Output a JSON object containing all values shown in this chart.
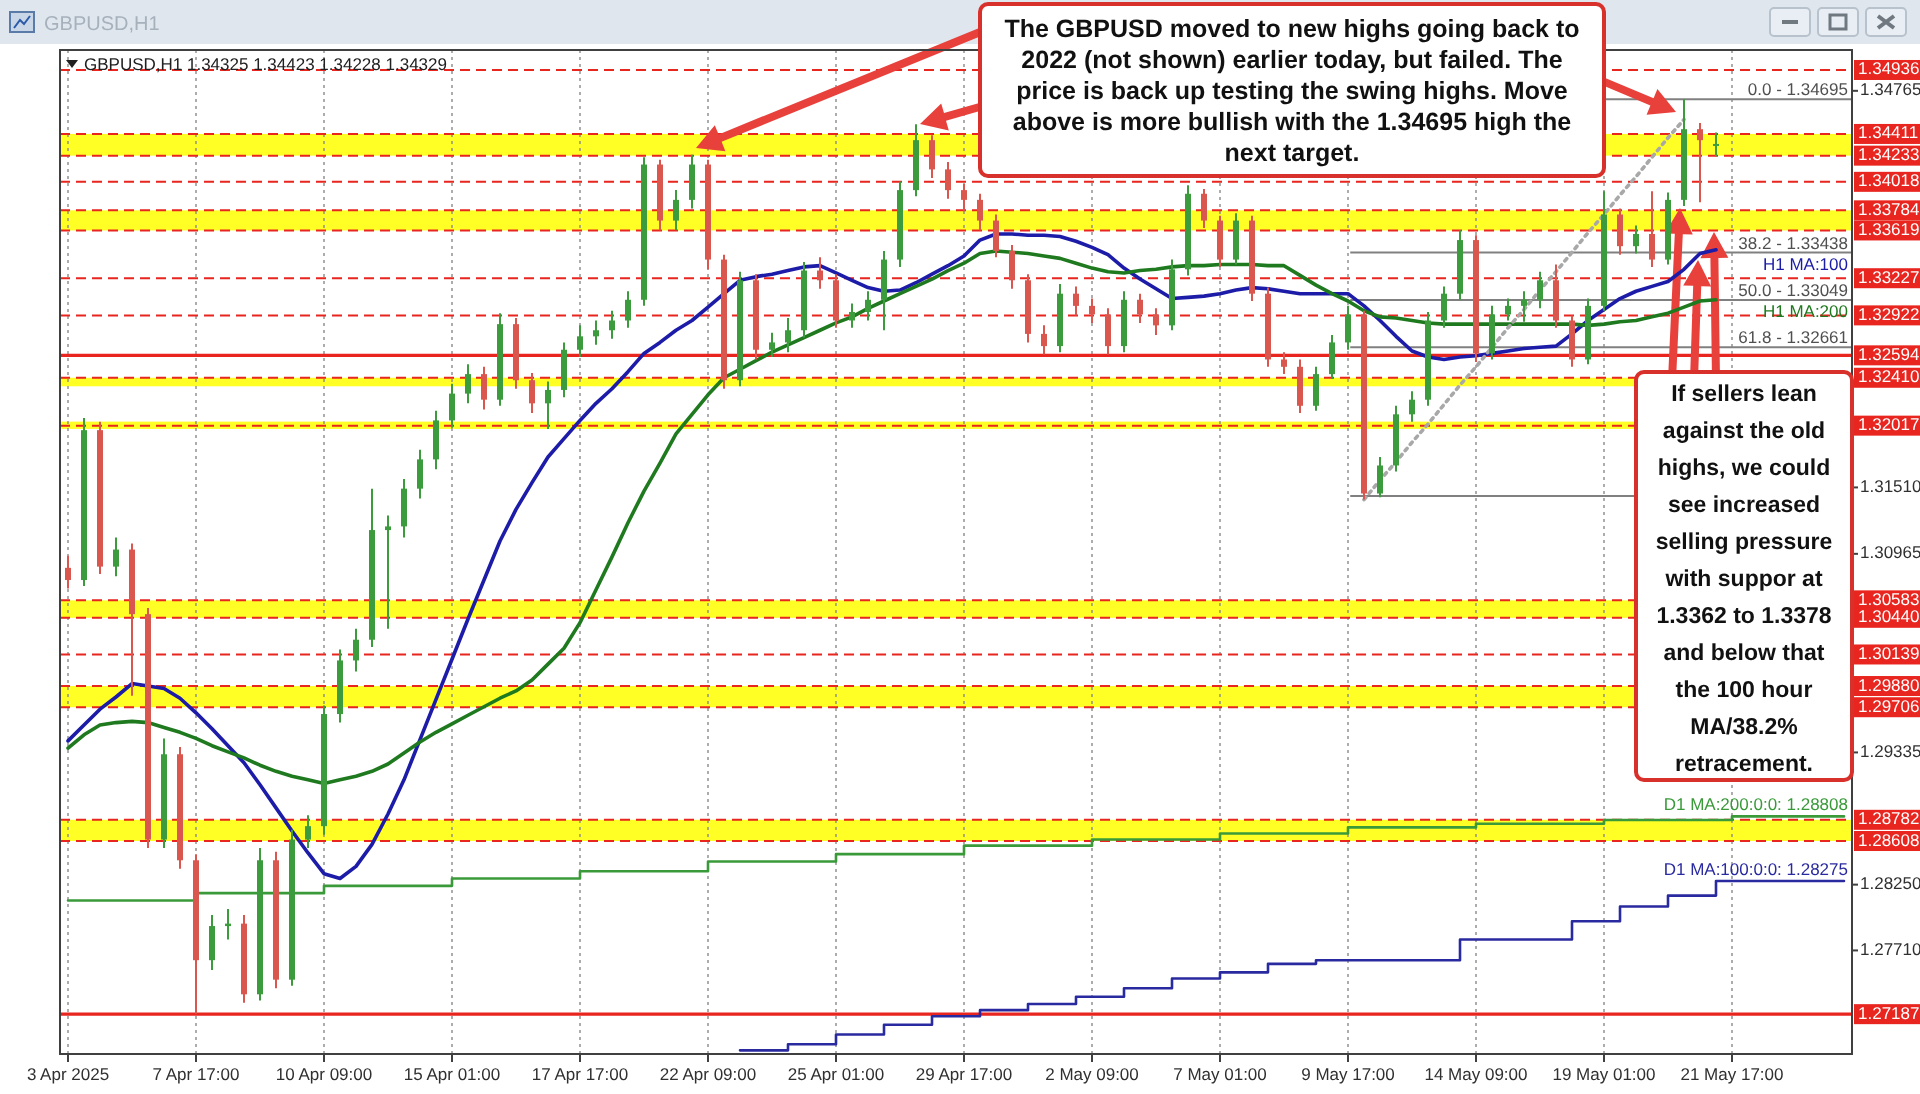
{
  "chart_data": {
    "type": "candlestick",
    "title": "GBPUSD,H1  1.34325 1.34423 1.34228 1.34329",
    "subtitle": "GBPUSD,H1",
    "ylim": [
      1.2686,
      1.351
    ],
    "yticks": [
      {
        "value": 1.2771,
        "label": "1.27710"
      },
      {
        "value": 1.2825,
        "label": "1.28250"
      },
      1.29335,
      1.30965,
      {
        "value": 1.3151,
        "label": "1.31510"
      },
      1.34765
    ],
    "grid": "x",
    "categories": [
      "3 Apr 2025",
      null,
      null,
      null,
      null,
      null,
      null,
      null,
      "7 Apr 17:00",
      null,
      null,
      null,
      null,
      null,
      null,
      null,
      "10 Apr 09:00",
      null,
      null,
      null,
      null,
      null,
      null,
      null,
      "15 Apr 01:00",
      null,
      null,
      null,
      null,
      null,
      null,
      null,
      "17 Apr 17:00",
      null,
      null,
      null,
      null,
      null,
      null,
      null,
      "22 Apr 09:00",
      null,
      null,
      null,
      null,
      null,
      null,
      null,
      "25 Apr 01:00",
      null,
      null,
      null,
      null,
      null,
      null,
      null,
      "29 Apr 17:00",
      null,
      null,
      null,
      null,
      null,
      null,
      null,
      "2 May 09:00",
      null,
      null,
      null,
      null,
      null,
      null,
      null,
      "7 May 01:00",
      null,
      null,
      null,
      null,
      null,
      null,
      null,
      "9 May 17:00",
      null,
      null,
      null,
      null,
      null,
      null,
      null,
      "14 May 09:00",
      null,
      null,
      null,
      null,
      null,
      null,
      null,
      "19 May 01:00",
      null,
      null,
      null,
      null,
      null,
      null,
      null,
      "21 May 17:00",
      null,
      null,
      null,
      null,
      null,
      null,
      null
    ],
    "ohlc": [
      [
        1.3085,
        1.3095,
        1.3068,
        1.3075
      ],
      [
        1.3075,
        1.3208,
        1.307,
        1.3198
      ],
      [
        1.3198,
        1.3205,
        1.308,
        1.3086
      ],
      [
        1.3086,
        1.311,
        1.3078,
        1.31
      ],
      [
        1.31,
        1.3105,
        1.298,
        1.3047
      ],
      [
        1.3047,
        1.3052,
        1.2855,
        1.2862
      ],
      [
        1.2862,
        1.2945,
        1.2855,
        1.2932
      ],
      [
        1.2932,
        1.2938,
        1.2838,
        1.2845
      ],
      [
        1.2845,
        1.285,
        1.2719,
        1.2763
      ],
      [
        1.2763,
        1.28,
        1.2755,
        1.2791
      ],
      [
        1.2791,
        1.2805,
        1.278,
        1.2793
      ],
      [
        1.2793,
        1.28,
        1.2728,
        1.2735
      ],
      [
        1.2735,
        1.2855,
        1.273,
        1.2845
      ],
      [
        1.2845,
        1.2852,
        1.274,
        1.2747
      ],
      [
        1.2747,
        1.287,
        1.2742,
        1.2862
      ],
      [
        1.2862,
        1.2882,
        1.2855,
        1.2873
      ],
      [
        1.2873,
        1.2972,
        1.2866,
        1.2965
      ],
      [
        1.2965,
        1.3018,
        1.2958,
        1.3009
      ],
      [
        1.3009,
        1.3035,
        1.3,
        1.3026
      ],
      [
        1.3026,
        1.315,
        1.302,
        1.3116
      ],
      [
        1.3116,
        1.3128,
        1.3035,
        1.3119
      ],
      [
        1.3119,
        1.3158,
        1.311,
        1.315
      ],
      [
        1.315,
        1.3182,
        1.3142,
        1.3174
      ],
      [
        1.3174,
        1.3214,
        1.3166,
        1.3206
      ],
      [
        1.3206,
        1.3236,
        1.32,
        1.3228
      ],
      [
        1.3228,
        1.3252,
        1.322,
        1.3244
      ],
      [
        1.3244,
        1.325,
        1.3215,
        1.3223
      ],
      [
        1.3223,
        1.3294,
        1.3218,
        1.3285
      ],
      [
        1.3285,
        1.329,
        1.3232,
        1.3239
      ],
      [
        1.3239,
        1.3245,
        1.3212,
        1.322
      ],
      [
        1.322,
        1.3238,
        1.3199,
        1.3231
      ],
      [
        1.3231,
        1.327,
        1.3225,
        1.3264
      ],
      [
        1.3264,
        1.3284,
        1.3258,
        1.3275
      ],
      [
        1.3275,
        1.3288,
        1.3268,
        1.328
      ],
      [
        1.328,
        1.3296,
        1.3273,
        1.3288
      ],
      [
        1.3288,
        1.3312,
        1.3282,
        1.3305
      ],
      [
        1.3305,
        1.3422,
        1.33,
        1.3416
      ],
      [
        1.3416,
        1.342,
        1.3362,
        1.337
      ],
      [
        1.337,
        1.3395,
        1.3362,
        1.3387
      ],
      [
        1.3387,
        1.3424,
        1.338,
        1.3416
      ],
      [
        1.3416,
        1.342,
        1.333,
        1.3338
      ],
      [
        1.3338,
        1.3342,
        1.3232,
        1.3239
      ],
      [
        1.3239,
        1.3328,
        1.3234,
        1.3321
      ],
      [
        1.3321,
        1.3326,
        1.3256,
        1.3264
      ],
      [
        1.3264,
        1.3278,
        1.3258,
        1.327
      ],
      [
        1.327,
        1.329,
        1.3262,
        1.328
      ],
      [
        1.328,
        1.3336,
        1.3274,
        1.3329
      ],
      [
        1.3329,
        1.334,
        1.3314,
        1.3321
      ],
      [
        1.3321,
        1.3326,
        1.3282,
        1.3288
      ],
      [
        1.3288,
        1.3302,
        1.3282,
        1.3295
      ],
      [
        1.3295,
        1.3312,
        1.3288,
        1.3305
      ],
      [
        1.3305,
        1.3345,
        1.328,
        1.3338
      ],
      [
        1.3338,
        1.3402,
        1.3332,
        1.3395
      ],
      [
        1.3395,
        1.3449,
        1.339,
        1.3436
      ],
      [
        1.3436,
        1.344,
        1.3405,
        1.3412
      ],
      [
        1.3412,
        1.3418,
        1.3388,
        1.3395
      ],
      [
        1.3395,
        1.34,
        1.3378,
        1.3387
      ],
      [
        1.3387,
        1.3392,
        1.3362,
        1.337
      ],
      [
        1.337,
        1.3375,
        1.334,
        1.3345
      ],
      [
        1.3345,
        1.335,
        1.3314,
        1.3321
      ],
      [
        1.3321,
        1.3326,
        1.327,
        1.3277
      ],
      [
        1.3277,
        1.3284,
        1.326,
        1.3267
      ],
      [
        1.3267,
        1.3318,
        1.3262,
        1.331
      ],
      [
        1.331,
        1.3316,
        1.3292,
        1.33
      ],
      [
        1.33,
        1.3306,
        1.3286,
        1.3293
      ],
      [
        1.3293,
        1.3298,
        1.326,
        1.3267
      ],
      [
        1.3267,
        1.3312,
        1.3262,
        1.3305
      ],
      [
        1.3305,
        1.331,
        1.3286,
        1.3293
      ],
      [
        1.3293,
        1.3298,
        1.3276,
        1.3284
      ],
      [
        1.3284,
        1.3338,
        1.328,
        1.333
      ],
      [
        1.333,
        1.3399,
        1.3325,
        1.3392
      ],
      [
        1.3392,
        1.3396,
        1.3364,
        1.337
      ],
      [
        1.337,
        1.3374,
        1.3332,
        1.3338
      ],
      [
        1.3338,
        1.3376,
        1.3334,
        1.337
      ],
      [
        1.337,
        1.3374,
        1.3304,
        1.331
      ],
      [
        1.331,
        1.3315,
        1.325,
        1.3256
      ],
      [
        1.3256,
        1.3262,
        1.3244,
        1.325
      ],
      [
        1.325,
        1.3256,
        1.3212,
        1.3218
      ],
      [
        1.3218,
        1.325,
        1.3214,
        1.3244
      ],
      [
        1.3244,
        1.3276,
        1.324,
        1.327
      ],
      [
        1.327,
        1.33,
        1.3264,
        1.3293
      ],
      [
        1.3293,
        1.3296,
        1.3141,
        1.3146
      ],
      [
        1.3146,
        1.3176,
        1.3143,
        1.3169
      ],
      [
        1.3169,
        1.3218,
        1.3164,
        1.3211
      ],
      [
        1.3211,
        1.323,
        1.3205,
        1.3223
      ],
      [
        1.3223,
        1.3295,
        1.3218,
        1.3288
      ],
      [
        1.3288,
        1.3316,
        1.3282,
        1.331
      ],
      [
        1.331,
        1.3362,
        1.3305,
        1.3354
      ],
      [
        1.3354,
        1.3358,
        1.3254,
        1.3261
      ],
      [
        1.3261,
        1.33,
        1.3256,
        1.3293
      ],
      [
        1.3293,
        1.3306,
        1.3288,
        1.33
      ],
      [
        1.33,
        1.3312,
        1.3287,
        1.3305
      ],
      [
        1.3305,
        1.3328,
        1.3298,
        1.3321
      ],
      [
        1.3321,
        1.3334,
        1.3282,
        1.3288
      ],
      [
        1.3288,
        1.3292,
        1.325,
        1.3256
      ],
      [
        1.3256,
        1.3306,
        1.3252,
        1.33
      ],
      [
        1.33,
        1.3394,
        1.3296,
        1.3375
      ],
      [
        1.3375,
        1.338,
        1.3342,
        1.3349
      ],
      [
        1.3349,
        1.3366,
        1.3343,
        1.3359
      ],
      [
        1.3359,
        1.3394,
        1.3332,
        1.3338
      ],
      [
        1.3338,
        1.3393,
        1.3334,
        1.3387
      ],
      [
        1.3387,
        1.34695,
        1.3382,
        1.3445
      ],
      [
        1.3445,
        1.345,
        1.3385,
        1.3436
      ],
      [
        1.34325,
        1.34423,
        1.34228,
        1.34329
      ],
      null,
      null,
      null,
      null,
      null,
      null,
      null,
      null
    ],
    "series": [
      {
        "name": "H1 MA:100",
        "type": "line",
        "color": "#1c1ca8",
        "values": [
          1.2943,
          1.2956,
          1.2969,
          1.2979,
          1.299,
          1.2988,
          1.2986,
          1.2978,
          1.2966,
          1.2953,
          1.2939,
          1.2925,
          1.2907,
          1.2888,
          1.2869,
          1.2851,
          1.2834,
          1.283,
          1.284,
          1.2858,
          1.2883,
          1.2911,
          1.2944,
          1.2977,
          1.301,
          1.3043,
          1.3075,
          1.3107,
          1.3133,
          1.3155,
          1.3176,
          1.3191,
          1.3206,
          1.322,
          1.3232,
          1.3246,
          1.3261,
          1.327,
          1.328,
          1.3288,
          1.3299,
          1.331,
          1.3321,
          1.3324,
          1.3326,
          1.3329,
          1.3332,
          1.3333,
          1.3327,
          1.3321,
          1.3315,
          1.3312,
          1.3313,
          1.3319,
          1.3326,
          1.3333,
          1.3341,
          1.3354,
          1.3359,
          1.3359,
          1.3358,
          1.3358,
          1.3357,
          1.3353,
          1.3348,
          1.3342,
          1.3331,
          1.3322,
          1.3314,
          1.3306,
          1.3307,
          1.3308,
          1.331,
          1.3313,
          1.3315,
          1.3314,
          1.3312,
          1.331,
          1.331,
          1.331,
          1.331,
          1.33,
          1.3288,
          1.3275,
          1.3263,
          1.3258,
          1.3256,
          1.3258,
          1.3259,
          1.3261,
          1.3263,
          1.3265,
          1.3266,
          1.3267,
          1.3277,
          1.3288,
          1.3297,
          1.3306,
          1.3312,
          1.3316,
          1.332,
          1.333,
          1.3343,
          1.3346,
          null,
          null,
          null,
          null,
          null,
          null,
          null,
          null
        ]
      },
      {
        "name": "H1 MA:200",
        "type": "line",
        "color": "#1f7a1f",
        "values": [
          1.2937,
          1.2948,
          1.2956,
          1.2958,
          1.2959,
          1.2958,
          1.2954,
          1.295,
          1.2945,
          1.2939,
          1.2934,
          1.2929,
          1.2923,
          1.2918,
          1.2914,
          1.2911,
          1.2908,
          1.2911,
          1.2914,
          1.2918,
          1.2924,
          1.2933,
          1.2942,
          1.295,
          1.2957,
          1.2964,
          1.2971,
          1.2978,
          1.2984,
          1.2993,
          1.3006,
          1.3019,
          1.304,
          1.3067,
          1.3094,
          1.3122,
          1.3148,
          1.3171,
          1.3195,
          1.3211,
          1.3227,
          1.3241,
          1.3248,
          1.3255,
          1.3262,
          1.3268,
          1.3274,
          1.328,
          1.3286,
          1.3291,
          1.3298,
          1.3304,
          1.331,
          1.3316,
          1.3322,
          1.3329,
          1.3335,
          1.3343,
          1.3345,
          1.3344,
          1.3343,
          1.3341,
          1.3339,
          1.3335,
          1.3331,
          1.3328,
          1.3327,
          1.3329,
          1.333,
          1.3332,
          1.3333,
          1.3333,
          1.3334,
          1.3334,
          1.3334,
          1.3333,
          1.3333,
          1.3325,
          1.3317,
          1.331,
          1.3304,
          1.3296,
          1.3291,
          1.329,
          1.3288,
          1.3286,
          1.3285,
          1.3285,
          1.3285,
          1.3285,
          1.3285,
          1.3285,
          1.3285,
          1.3285,
          1.3285,
          1.3284,
          1.3285,
          1.3287,
          1.3288,
          1.3291,
          1.3294,
          1.3299,
          1.3304,
          1.3305,
          null,
          null,
          null,
          null,
          null,
          null,
          null,
          null
        ]
      },
      {
        "name": "D1 MA:200:0:0: 1.28808",
        "type": "step",
        "color": "#3a9a3a",
        "values": [
          1.2812,
          1.2812,
          1.2812,
          1.2812,
          1.2812,
          1.2812,
          1.2812,
          1.2812,
          1.2818,
          1.2818,
          1.2818,
          1.2818,
          1.2818,
          1.2818,
          1.2818,
          1.2818,
          1.2824,
          1.2824,
          1.2824,
          1.2824,
          1.2824,
          1.2824,
          1.2824,
          1.2824,
          1.283,
          1.283,
          1.283,
          1.283,
          1.283,
          1.283,
          1.283,
          1.283,
          1.2836,
          1.2836,
          1.2836,
          1.2836,
          1.2836,
          1.2836,
          1.2836,
          1.2836,
          1.2844,
          1.2844,
          1.2844,
          1.2844,
          1.2844,
          1.2844,
          1.2844,
          1.2844,
          1.285,
          1.285,
          1.285,
          1.285,
          1.285,
          1.285,
          1.285,
          1.285,
          1.2857,
          1.2857,
          1.2857,
          1.2857,
          1.2857,
          1.2857,
          1.2857,
          1.2857,
          1.2862,
          1.2862,
          1.2862,
          1.2862,
          1.2862,
          1.2862,
          1.2862,
          1.2862,
          1.2867,
          1.2867,
          1.2867,
          1.2867,
          1.2867,
          1.2867,
          1.2867,
          1.2867,
          1.2872,
          1.2872,
          1.2872,
          1.2872,
          1.2872,
          1.2872,
          1.2872,
          1.2872,
          1.2875,
          1.2875,
          1.2875,
          1.2875,
          1.2875,
          1.2875,
          1.2875,
          1.2875,
          1.2878,
          1.2878,
          1.2878,
          1.2878,
          1.2878,
          1.2878,
          1.2878,
          1.2878,
          1.2881,
          1.2881,
          1.2881,
          1.2881,
          1.2881,
          1.2881,
          1.2881,
          1.2881
        ]
      },
      {
        "name": "D1 MA:100:0:0: 1.28275",
        "type": "step",
        "color": "#2a2aa0",
        "values": [
          null,
          null,
          null,
          null,
          null,
          null,
          null,
          null,
          null,
          null,
          null,
          null,
          null,
          null,
          null,
          null,
          null,
          null,
          null,
          null,
          null,
          null,
          null,
          null,
          null,
          null,
          null,
          null,
          null,
          null,
          null,
          null,
          null,
          null,
          null,
          null,
          null,
          null,
          null,
          null,
          null,
          null,
          1.2689,
          1.2689,
          1.2689,
          1.2694,
          1.2694,
          1.2694,
          1.2702,
          1.2702,
          1.2702,
          1.271,
          1.271,
          1.271,
          1.2717,
          1.2717,
          1.2717,
          1.2722,
          1.2722,
          1.2722,
          1.2727,
          1.2727,
          1.2727,
          1.2733,
          1.2733,
          1.2733,
          1.274,
          1.274,
          1.274,
          1.2748,
          1.2748,
          1.2748,
          1.2753,
          1.2753,
          1.2753,
          1.276,
          1.276,
          1.276,
          1.2763,
          1.2763,
          1.2763,
          1.2763,
          1.2763,
          1.2763,
          1.2763,
          1.2763,
          1.2763,
          1.278,
          1.278,
          1.278,
          1.278,
          1.278,
          1.278,
          1.278,
          1.2795,
          1.2795,
          1.2795,
          1.2807,
          1.2807,
          1.2807,
          1.2816,
          1.2816,
          1.2816,
          1.2828,
          1.2828,
          1.2828,
          1.2828,
          1.2828,
          1.2828,
          1.2828,
          1.2828,
          1.2828
        ]
      },
      {
        "type": "line",
        "color": "#a8a8a8",
        "line_style": "dotted",
        "values": [
          null,
          null,
          null,
          null,
          null,
          null,
          null,
          null,
          null,
          null,
          null,
          null,
          null,
          null,
          null,
          null,
          null,
          null,
          null,
          null,
          null,
          null,
          null,
          null,
          null,
          null,
          null,
          null,
          null,
          null,
          null,
          null,
          null,
          null,
          null,
          null,
          null,
          null,
          null,
          null,
          null,
          null,
          null,
          null,
          null,
          null,
          null,
          null,
          null,
          null,
          null,
          null,
          null,
          null,
          null,
          null,
          null,
          null,
          null,
          null,
          null,
          null,
          null,
          null,
          null,
          null,
          null,
          null,
          null,
          null,
          null,
          null,
          null,
          null,
          null,
          null,
          null,
          null,
          null,
          null,
          null,
          1.3141,
          1.3157,
          1.3172,
          1.3188,
          1.3203,
          1.3219,
          1.3235,
          1.325,
          1.3266,
          1.3282,
          1.3297,
          1.3313,
          1.3328,
          1.3344,
          1.336,
          1.3375,
          1.3391,
          1.3406,
          1.3422,
          1.3438,
          1.3453,
          null,
          null,
          null,
          null,
          null,
          null,
          null,
          null,
          null,
          null
        ]
      }
    ],
    "ref_lines": [
      {
        "axis": "y",
        "value": 1.34936,
        "label": "1.34936",
        "color": "#e8251f",
        "line_style": "dashed"
      },
      {
        "axis": "y",
        "value": 1.34411,
        "label": "1.34411",
        "color": "#e8251f",
        "line_style": "dashed"
      },
      {
        "axis": "y",
        "value": 1.34233,
        "label": "1.34233",
        "color": "#e8251f",
        "line_style": "dashed"
      },
      {
        "axis": "y",
        "value": 1.34018,
        "label": "1.34018",
        "color": "#e8251f",
        "line_style": "dashed"
      },
      {
        "axis": "y",
        "value": 1.33784,
        "label": "1.33784",
        "color": "#e8251f",
        "line_style": "dashed"
      },
      {
        "axis": "y",
        "value": 1.33619,
        "label": "1.33619",
        "color": "#e8251f",
        "line_style": "dashed"
      },
      {
        "axis": "y",
        "value": 1.33227,
        "label": "1.33227",
        "color": "#e8251f",
        "line_style": "dashed"
      },
      {
        "axis": "y",
        "value": 1.32922,
        "label": "1.32922",
        "color": "#e8251f",
        "line_style": "dashed"
      },
      {
        "axis": "y",
        "value": 1.32594,
        "label": "1.32594",
        "color": "#e8251f",
        "line_style": "solid"
      },
      {
        "axis": "y",
        "value": 1.3241,
        "label": "1.32410",
        "color": "#e8251f",
        "line_style": "dashed"
      },
      {
        "axis": "y",
        "value": 1.32017,
        "label": "1.32017",
        "color": "#e8251f",
        "line_style": "dashed"
      },
      {
        "axis": "y",
        "value": 1.30583,
        "label": "1.30583",
        "color": "#e8251f",
        "line_style": "dashed"
      },
      {
        "axis": "y",
        "value": 1.3044,
        "label": "1.30440",
        "color": "#e8251f",
        "line_style": "dashed"
      },
      {
        "axis": "y",
        "value": 1.30139,
        "label": "1.30139",
        "color": "#e8251f",
        "line_style": "dashed"
      },
      {
        "axis": "y",
        "value": 1.2988,
        "label": "1.29880",
        "color": "#e8251f",
        "line_style": "dashed"
      },
      {
        "axis": "y",
        "value": 1.29706,
        "label": "1.29706",
        "color": "#e8251f",
        "line_style": "dashed"
      },
      {
        "axis": "y",
        "value": 1.28782,
        "label": "1.28782",
        "color": "#e8251f",
        "line_style": "dashed"
      },
      {
        "axis": "y",
        "value": 1.28608,
        "label": "1.28608",
        "color": "#e8251f",
        "line_style": "dashed"
      },
      {
        "axis": "y",
        "value": 1.27187,
        "label": "1.27187",
        "color": "#e8251f",
        "line_style": "solid"
      },
      {
        "axis": "y",
        "value": 1.34695,
        "color": "#808080",
        "line_style": "solid"
      },
      {
        "axis": "y",
        "value": 1.33438,
        "color": "#808080",
        "line_style": "solid"
      },
      {
        "axis": "y",
        "value": 1.33049,
        "color": "#808080",
        "line_style": "solid"
      },
      {
        "axis": "y",
        "value": 1.32661,
        "color": "#808080",
        "line_style": "solid"
      },
      {
        "axis": "y",
        "value": 1.3144,
        "color": "#808080",
        "line_style": "solid"
      }
    ],
    "bands": [
      {
        "axis": "y",
        "from": 1.34233,
        "to": 1.34411,
        "color": "#ffff00"
      },
      {
        "axis": "y",
        "from": 1.33619,
        "to": 1.33784,
        "color": "#ffff00"
      },
      {
        "axis": "y",
        "from": 1.3234,
        "to": 1.3241,
        "color": "#ffff00"
      },
      {
        "axis": "y",
        "from": 1.3199,
        "to": 1.3205,
        "color": "#ffff00"
      },
      {
        "axis": "y",
        "from": 1.3044,
        "to": 1.30583,
        "color": "#ffff00"
      },
      {
        "axis": "y",
        "from": 1.29706,
        "to": 1.2988,
        "color": "#ffff00"
      },
      {
        "axis": "y",
        "from": 1.28608,
        "to": 1.28782,
        "color": "#ffff00"
      }
    ],
    "annotations": [
      "The GBPUSD moved to new highs going back to 2022 (not shown) earlier today, but failed. The price is back up testing the swing highs. Move above is more bullish with the 1.34695 high the next target.",
      "If sellers lean against the old highs, we could see increased selling pressure with suppor at 1.3362 to 1.3378 and below that the 100 hour MA/38.2% retracement.",
      {
        "text": "0.0 - 1.34695",
        "y": 1.34695
      },
      {
        "text": "38.2 - 1.33438",
        "y": 1.33438
      },
      {
        "text": "50.0 - 1.33049",
        "y": 1.33049
      },
      {
        "text": "61.8 - 1.32661",
        "y": 1.32661
      }
    ]
  }
}
